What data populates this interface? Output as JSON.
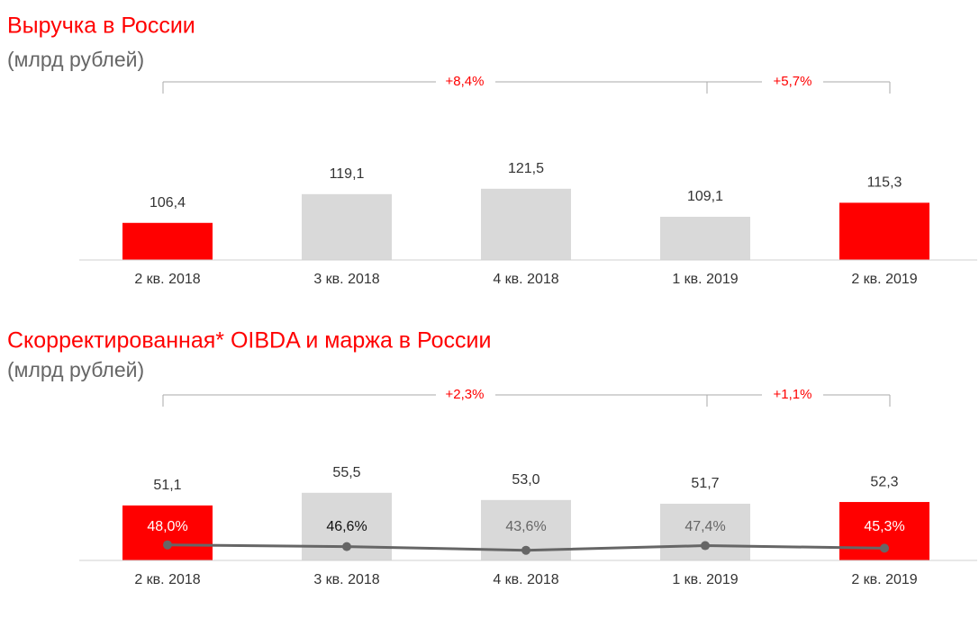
{
  "chart_data": [
    {
      "type": "bar",
      "title": "Выручка в России",
      "subtitle": "(млрд рублей)",
      "categories": [
        "2 кв. 2018",
        "3 кв. 2018",
        "4 кв. 2018",
        "1 кв. 2019",
        "2 кв. 2019"
      ],
      "values": [
        106.4,
        119.1,
        121.5,
        109.1,
        115.3
      ],
      "value_labels": [
        "106,4",
        "119,1",
        "121,5",
        "109,1",
        "115,3"
      ],
      "colors": [
        "#ff0000",
        "#d9d9d9",
        "#d9d9d9",
        "#d9d9d9",
        "#ff0000"
      ],
      "ylim": [
        90,
        125
      ],
      "annotations": [
        "+8,4%",
        "+5,7%"
      ]
    },
    {
      "type": "bar_line",
      "title": "Скорректированная* OIBDA и маржа в России",
      "subtitle": "(млрд рублей)",
      "categories": [
        "2 кв. 2018",
        "3 кв. 2018",
        "4 кв. 2018",
        "1 кв. 2019",
        "2 кв. 2019"
      ],
      "values": [
        51.1,
        55.5,
        53.0,
        51.7,
        52.3
      ],
      "value_labels": [
        "51,1",
        "55,5",
        "53,0",
        "51,7",
        "52,3"
      ],
      "colors": [
        "#ff0000",
        "#d9d9d9",
        "#d9d9d9",
        "#d9d9d9",
        "#ff0000"
      ],
      "ylim": [
        32,
        57
      ],
      "line": {
        "values": [
          48.0,
          46.6,
          43.6,
          47.4,
          45.3
        ],
        "value_labels": [
          "48,0%",
          "46,6%",
          "43,6%",
          "47,4%",
          "45,3%"
        ],
        "color": "#666666",
        "axis": "y2"
      },
      "y2lim": [
        0,
        100
      ],
      "annotations": [
        "+2,3%",
        "+1,1%"
      ]
    }
  ]
}
